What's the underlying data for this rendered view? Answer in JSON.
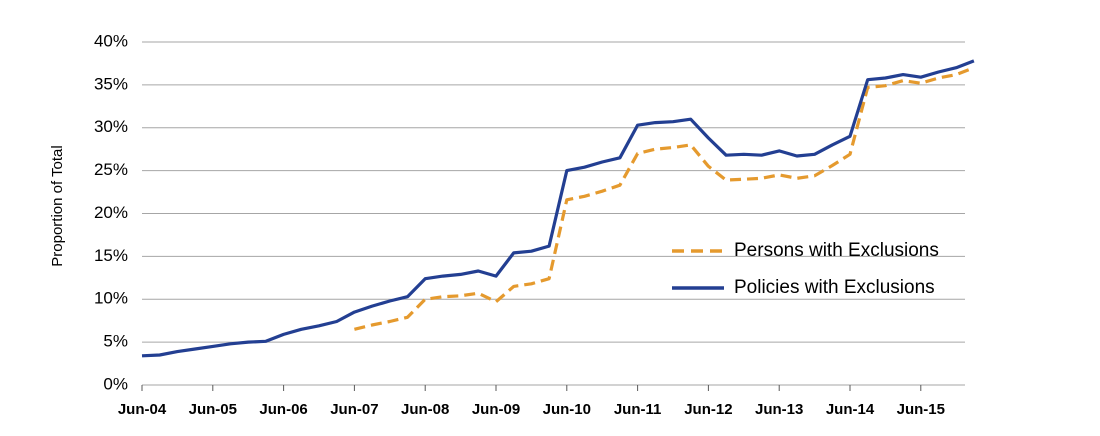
{
  "chart_data": {
    "type": "line",
    "ylabel": "Proportion of Total",
    "xlabel": "",
    "ylim": [
      0,
      40
    ],
    "y_ticks": [
      0,
      5,
      10,
      15,
      20,
      25,
      30,
      35,
      40
    ],
    "y_tick_labels": [
      "0%",
      "5%",
      "10%",
      "15%",
      "20%",
      "25%",
      "30%",
      "35%",
      "40%"
    ],
    "x_ticks": [
      "Jun-04",
      "Jun-05",
      "Jun-06",
      "Jun-07",
      "Jun-08",
      "Jun-09",
      "Jun-10",
      "Jun-11",
      "Jun-12",
      "Jun-13",
      "Jun-14",
      "Jun-15"
    ],
    "grid": true,
    "legend_position": "right",
    "series": [
      {
        "name": "Persons with Exclusions",
        "color": "#e59a2e",
        "style": "dashed",
        "x": [
          "Jun-07",
          "Sep-07",
          "Dec-07",
          "Mar-08",
          "Jun-08",
          "Sep-08",
          "Dec-08",
          "Mar-09",
          "Jun-09",
          "Sep-09",
          "Dec-09",
          "Mar-10",
          "Jun-10",
          "Sep-10",
          "Dec-10",
          "Mar-11",
          "Jun-11",
          "Sep-11",
          "Dec-11",
          "Mar-12",
          "Jun-12",
          "Sep-12",
          "Dec-12",
          "Mar-13",
          "Jun-13",
          "Sep-13",
          "Dec-13",
          "Mar-14",
          "Jun-14",
          "Sep-14",
          "Dec-14",
          "Mar-15",
          "Jun-15",
          "Sep-15",
          "Dec-15",
          "Mar-16"
        ],
        "values": [
          6.5,
          7.0,
          7.4,
          7.9,
          10.0,
          10.3,
          10.4,
          10.7,
          9.7,
          11.5,
          11.8,
          12.4,
          21.6,
          22.0,
          22.6,
          23.3,
          27.0,
          27.5,
          27.7,
          28.0,
          25.5,
          23.9,
          24.0,
          24.1,
          24.5,
          24.1,
          24.4,
          25.6,
          26.9,
          34.7,
          34.9,
          35.5,
          35.2,
          35.8,
          36.2,
          37.0
        ]
      },
      {
        "name": "Policies with Exclusions",
        "color": "#233f92",
        "style": "solid",
        "x": [
          "Jun-04",
          "Sep-04",
          "Dec-04",
          "Mar-05",
          "Jun-05",
          "Sep-05",
          "Dec-05",
          "Mar-06",
          "Jun-06",
          "Sep-06",
          "Dec-06",
          "Mar-07",
          "Jun-07",
          "Sep-07",
          "Dec-07",
          "Mar-08",
          "Jun-08",
          "Sep-08",
          "Dec-08",
          "Mar-09",
          "Jun-09",
          "Sep-09",
          "Dec-09",
          "Mar-10",
          "Jun-10",
          "Sep-10",
          "Dec-10",
          "Mar-11",
          "Jun-11",
          "Sep-11",
          "Dec-11",
          "Mar-12",
          "Jun-12",
          "Sep-12",
          "Dec-12",
          "Mar-13",
          "Jun-13",
          "Sep-13",
          "Dec-13",
          "Mar-14",
          "Jun-14",
          "Sep-14",
          "Dec-14",
          "Mar-15",
          "Jun-15",
          "Sep-15",
          "Dec-15",
          "Mar-16"
        ],
        "values": [
          3.4,
          3.5,
          3.9,
          4.2,
          4.5,
          4.8,
          5.0,
          5.1,
          5.9,
          6.5,
          6.9,
          7.4,
          8.5,
          9.2,
          9.8,
          10.3,
          12.4,
          12.7,
          12.9,
          13.3,
          12.7,
          15.4,
          15.6,
          16.2,
          25.0,
          25.4,
          26.0,
          26.5,
          30.3,
          30.6,
          30.7,
          31.0,
          28.8,
          26.8,
          26.9,
          26.8,
          27.3,
          26.7,
          26.9,
          28.0,
          29.0,
          35.6,
          35.8,
          36.2,
          35.9,
          36.5,
          37.0,
          37.8
        ]
      }
    ]
  }
}
